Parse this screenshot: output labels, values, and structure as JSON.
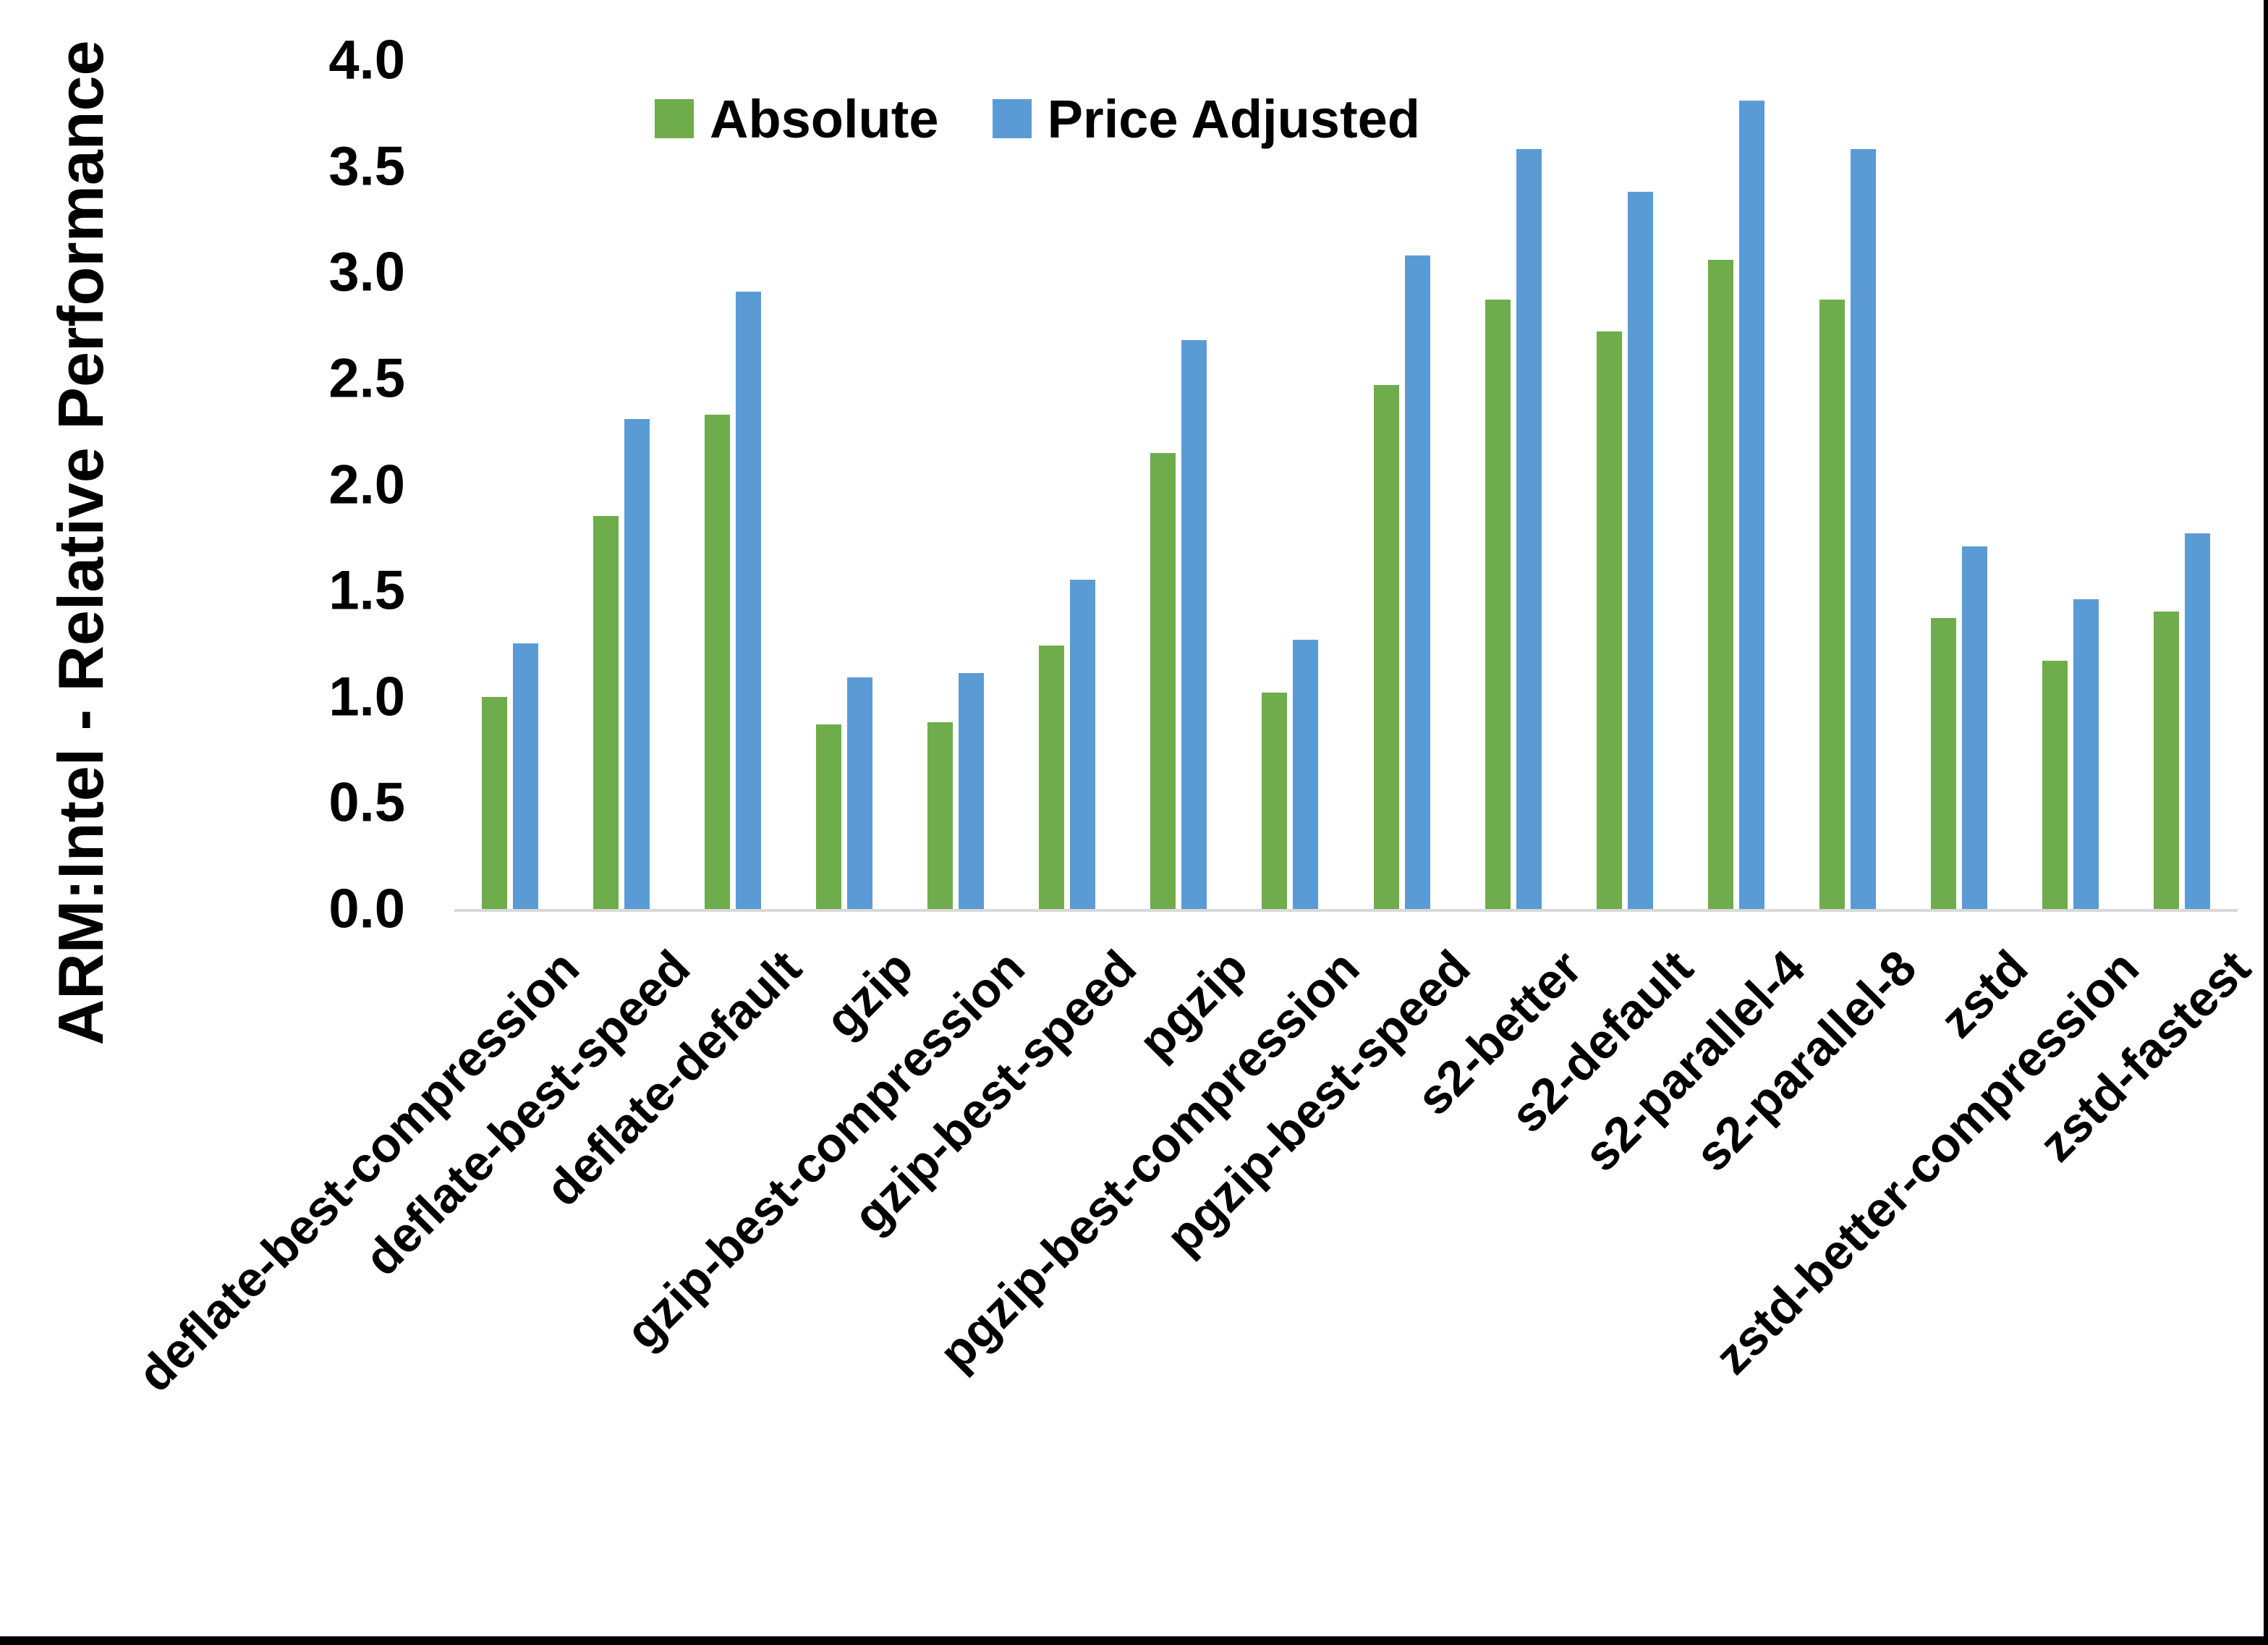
{
  "chart_data": {
    "type": "bar",
    "title": "",
    "ylabel": "ARM:Intel - Relative Performance",
    "xlabel": "",
    "categories": [
      "deflate-best-compression",
      "deflate-best-speed",
      "deflate-default",
      "gzip",
      "gzip-best-compression",
      "gzip-best-speed",
      "pgzip",
      "pgzip-best-compression",
      "pgzip-best-speed",
      "s2-better",
      "s2-default",
      "s2-parallel-4",
      "s2-parallel-8",
      "zstd",
      "zstd-better-compression",
      "zstd-fastest"
    ],
    "series": [
      {
        "name": "Absolute",
        "color": "#6FAC4B",
        "values": [
          1.0,
          1.85,
          2.33,
          0.87,
          0.88,
          1.24,
          2.15,
          1.02,
          2.47,
          2.87,
          2.72,
          3.06,
          2.87,
          1.37,
          1.17,
          1.4
        ]
      },
      {
        "name": "Price Adjusted",
        "color": "#5B9BD5",
        "values": [
          1.25,
          2.31,
          2.91,
          1.09,
          1.11,
          1.55,
          2.68,
          1.27,
          3.08,
          3.58,
          3.38,
          3.81,
          3.58,
          1.71,
          1.46,
          1.77
        ]
      }
    ],
    "ylim": [
      0,
      4
    ],
    "ytick_step": 0.5,
    "yticks": [
      "0.0",
      "0.5",
      "1.0",
      "1.5",
      "2.0",
      "2.5",
      "3.0",
      "3.5",
      "4.0"
    ],
    "legend_position": "top-center",
    "grid": false,
    "axis_line_color": "#D9D9D9"
  }
}
